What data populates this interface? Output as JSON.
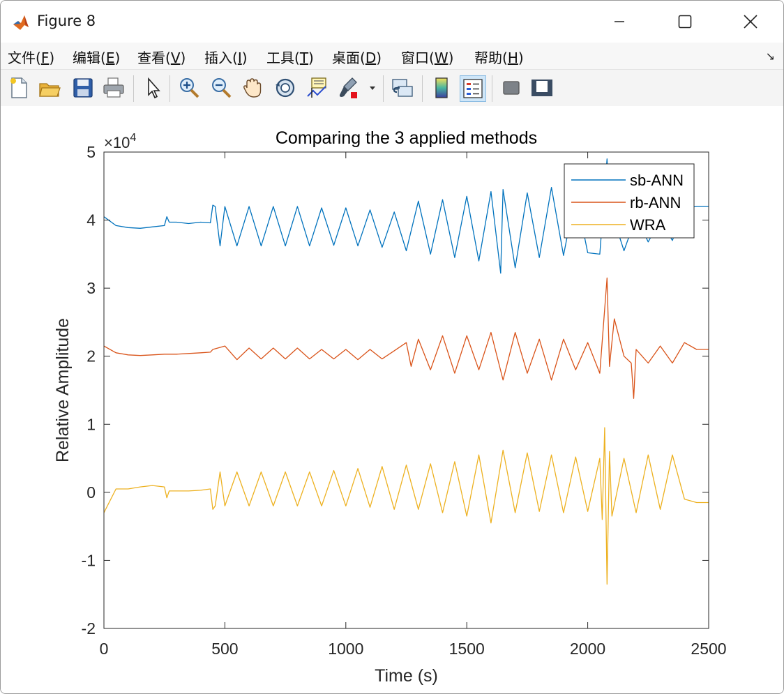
{
  "window": {
    "title": "Figure 8"
  },
  "menu": {
    "items": [
      {
        "label": "文件(",
        "key": "F",
        "tail": ")"
      },
      {
        "label": "编辑(",
        "key": "E",
        "tail": ")"
      },
      {
        "label": "查看(",
        "key": "V",
        "tail": ")"
      },
      {
        "label": "插入(",
        "key": "I",
        "tail": ")"
      },
      {
        "label": "工具(",
        "key": "T",
        "tail": ")"
      },
      {
        "label": "桌面(",
        "key": "D",
        "tail": ")"
      },
      {
        "label": "窗口(",
        "key": "W",
        "tail": ")"
      },
      {
        "label": "帮助(",
        "key": "H",
        "tail": ")"
      }
    ]
  },
  "toolbar": {
    "icons": [
      "new-figure-icon",
      "open-file-icon",
      "save-icon",
      "print-icon",
      "pointer-icon",
      "zoom-in-icon",
      "zoom-out-icon",
      "pan-hand-icon",
      "rotate-3d-icon",
      "data-cursor-icon",
      "brush-icon",
      "link-plot-icon",
      "colorbar-icon",
      "legend-icon",
      "hide-plot-tools-icon",
      "show-plot-tools-icon"
    ]
  },
  "chart_data": {
    "type": "line",
    "title": "Comparing the 3 applied methods",
    "xlabel": "Time (s)",
    "ylabel": "Relative Amplitude",
    "y_exponent_label": "×10",
    "y_exponent": "4",
    "xlim": [
      0,
      2500
    ],
    "ylim": [
      -2,
      5
    ],
    "xticks": [
      0,
      500,
      1000,
      1500,
      2000,
      2500
    ],
    "xtick_labels": [
      "0",
      "500",
      "1000",
      "1500",
      "2000",
      "2500"
    ],
    "yticks": [
      -2,
      -1,
      0,
      1,
      2,
      3,
      4,
      5
    ],
    "ytick_labels": [
      "-2",
      "-1",
      "0",
      "1",
      "2",
      "3",
      "4",
      "5"
    ],
    "grid": false,
    "legend_position": "top-right",
    "series": [
      {
        "name": "sb-ANN",
        "color": "#0072BD",
        "x": [
          0,
          50,
          100,
          150,
          200,
          250,
          260,
          270,
          300,
          350,
          400,
          440,
          450,
          460,
          480,
          500,
          550,
          600,
          650,
          700,
          750,
          800,
          850,
          900,
          950,
          1000,
          1050,
          1100,
          1150,
          1200,
          1250,
          1300,
          1350,
          1400,
          1450,
          1500,
          1550,
          1600,
          1640,
          1650,
          1700,
          1750,
          1800,
          1850,
          1900,
          1950,
          2000,
          2050,
          2080,
          2090,
          2100,
          2150,
          2200,
          2250,
          2300,
          2350,
          2400,
          2450,
          2500
        ],
        "y": [
          4.05,
          3.92,
          3.89,
          3.88,
          3.9,
          3.92,
          4.05,
          3.97,
          3.97,
          3.95,
          3.97,
          3.96,
          4.22,
          4.2,
          3.62,
          4.2,
          3.62,
          4.2,
          3.62,
          4.2,
          3.62,
          4.2,
          3.62,
          4.18,
          3.63,
          4.18,
          3.62,
          4.15,
          3.6,
          4.12,
          3.55,
          4.28,
          3.5,
          4.3,
          3.45,
          4.35,
          3.4,
          4.42,
          3.22,
          4.45,
          3.3,
          4.4,
          3.45,
          4.48,
          3.48,
          4.4,
          3.52,
          3.5,
          4.9,
          4.05,
          4.1,
          3.55,
          4.05,
          3.68,
          4.0,
          3.7,
          4.18,
          4.2,
          4.2
        ]
      },
      {
        "name": "rb-ANN",
        "color": "#D95319",
        "x": [
          0,
          50,
          100,
          150,
          200,
          250,
          300,
          350,
          400,
          440,
          450,
          500,
          550,
          600,
          650,
          700,
          750,
          800,
          850,
          900,
          950,
          1000,
          1050,
          1100,
          1150,
          1200,
          1250,
          1270,
          1300,
          1350,
          1400,
          1450,
          1500,
          1550,
          1600,
          1650,
          1700,
          1750,
          1800,
          1850,
          1900,
          1950,
          2000,
          2050,
          2080,
          2090,
          2110,
          2150,
          2180,
          2190,
          2200,
          2250,
          2300,
          2350,
          2400,
          2450,
          2500
        ],
        "y": [
          2.15,
          2.05,
          2.02,
          2.01,
          2.02,
          2.03,
          2.03,
          2.04,
          2.05,
          2.06,
          2.1,
          2.15,
          1.95,
          2.12,
          1.96,
          2.12,
          1.96,
          2.12,
          1.96,
          2.1,
          1.96,
          2.1,
          1.95,
          2.1,
          1.96,
          2.08,
          2.2,
          1.85,
          2.25,
          1.8,
          2.3,
          1.75,
          2.3,
          1.8,
          2.35,
          1.65,
          2.35,
          1.75,
          2.25,
          1.65,
          2.25,
          1.8,
          2.2,
          1.75,
          3.15,
          1.85,
          2.55,
          2.0,
          1.9,
          1.38,
          2.1,
          1.9,
          2.15,
          1.9,
          2.2,
          2.1,
          2.1
        ]
      },
      {
        "name": "WRA",
        "color": "#EDB120",
        "x": [
          0,
          50,
          100,
          150,
          200,
          250,
          260,
          270,
          300,
          350,
          400,
          440,
          450,
          460,
          480,
          500,
          550,
          600,
          650,
          700,
          750,
          800,
          850,
          900,
          950,
          1000,
          1050,
          1100,
          1150,
          1200,
          1250,
          1300,
          1350,
          1400,
          1450,
          1500,
          1550,
          1600,
          1650,
          1700,
          1750,
          1800,
          1850,
          1900,
          1950,
          2000,
          2050,
          2060,
          2070,
          2080,
          2090,
          2100,
          2150,
          2200,
          2250,
          2300,
          2350,
          2400,
          2450,
          2500
        ],
        "y": [
          -0.3,
          0.05,
          0.05,
          0.08,
          0.1,
          0.08,
          -0.08,
          0.02,
          0.02,
          0.02,
          0.03,
          0.05,
          -0.25,
          -0.2,
          0.3,
          -0.2,
          0.3,
          -0.2,
          0.3,
          -0.2,
          0.3,
          -0.2,
          0.3,
          -0.2,
          0.32,
          -0.2,
          0.35,
          -0.22,
          0.38,
          -0.25,
          0.4,
          -0.25,
          0.42,
          -0.3,
          0.45,
          -0.35,
          0.55,
          -0.45,
          0.62,
          -0.3,
          0.58,
          -0.28,
          0.55,
          -0.3,
          0.52,
          -0.28,
          0.5,
          -0.4,
          0.95,
          -1.35,
          0.6,
          -0.35,
          0.5,
          -0.3,
          0.55,
          -0.25,
          0.55,
          -0.1,
          -0.15,
          -0.15
        ]
      }
    ]
  }
}
